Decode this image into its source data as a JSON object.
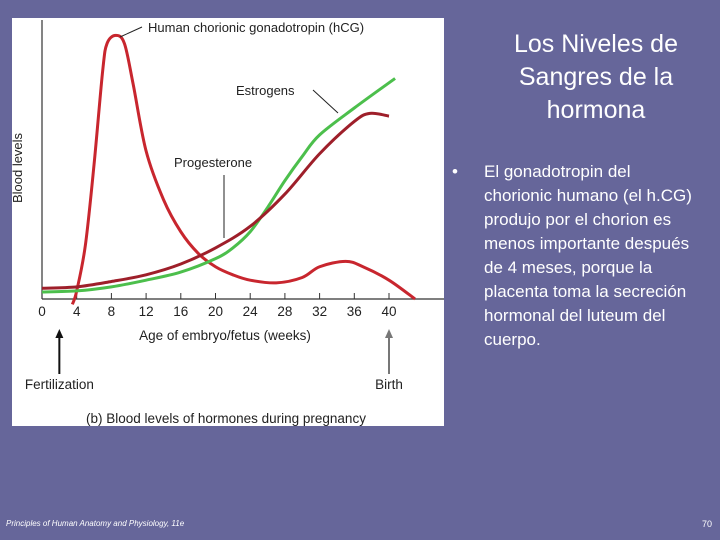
{
  "slide": {
    "title": "Los Niveles de Sangres de la hormona",
    "bullet": "El gonadotropin del chorionic humano (el h.CG) produjo por el chorion es menos importante después de 4 meses, porque la placenta toma la secreción hormonal del luteum del cuerpo.",
    "bullet_marker": "•",
    "footer": "Principles of Human Anatomy and Physiology, 11e",
    "page_number": "70"
  },
  "chart_data": {
    "type": "line",
    "title": "(b) Blood levels of hormones during pregnancy",
    "xlabel": "Age of embryo/fetus (weeks)",
    "ylabel": "Blood levels",
    "xlim": [
      0,
      46
    ],
    "ylim": [
      0,
      100
    ],
    "xticks": [
      0,
      4,
      8,
      12,
      16,
      20,
      24,
      28,
      32,
      36,
      40
    ],
    "grid": false,
    "series": [
      {
        "name": "Human chorionic gonadotropin (hCG)",
        "color": "#c8262e",
        "points": [
          [
            3.5,
            -2
          ],
          [
            4,
            3
          ],
          [
            5,
            20
          ],
          [
            6,
            50
          ],
          [
            7,
            85
          ],
          [
            7.5,
            95
          ],
          [
            8.5,
            98
          ],
          [
            9.5,
            95
          ],
          [
            10.5,
            80
          ],
          [
            12,
            55
          ],
          [
            14,
            37
          ],
          [
            16,
            25
          ],
          [
            18,
            17
          ],
          [
            20,
            12
          ],
          [
            22,
            9
          ],
          [
            24,
            7
          ],
          [
            27,
            6
          ],
          [
            30,
            8
          ],
          [
            32,
            12
          ],
          [
            35,
            14
          ],
          [
            37,
            12
          ],
          [
            40,
            7
          ],
          [
            43,
            0
          ]
        ]
      },
      {
        "name": "Estrogens",
        "color": "#4cbf4c",
        "points": [
          [
            0,
            2.6
          ],
          [
            4,
            3
          ],
          [
            8,
            4.5
          ],
          [
            12,
            7
          ],
          [
            16,
            10
          ],
          [
            20,
            15
          ],
          [
            22,
            19
          ],
          [
            24,
            25
          ],
          [
            26,
            34
          ],
          [
            28,
            44
          ],
          [
            30,
            53
          ],
          [
            32,
            61
          ],
          [
            36,
            71
          ],
          [
            40.7,
            82
          ]
        ]
      },
      {
        "name": "Progesterone",
        "color": "#9e1f2a",
        "points": [
          [
            0,
            4
          ],
          [
            4,
            4.5
          ],
          [
            8,
            6.5
          ],
          [
            12,
            9
          ],
          [
            16,
            13
          ],
          [
            20,
            19
          ],
          [
            24,
            27
          ],
          [
            28,
            39
          ],
          [
            32,
            54
          ],
          [
            36,
            66
          ],
          [
            37.8,
            69
          ],
          [
            40,
            68
          ]
        ]
      }
    ],
    "annotations": [
      {
        "text": "Fertilization",
        "week": 2
      },
      {
        "text": "Birth",
        "week": 40
      }
    ]
  }
}
